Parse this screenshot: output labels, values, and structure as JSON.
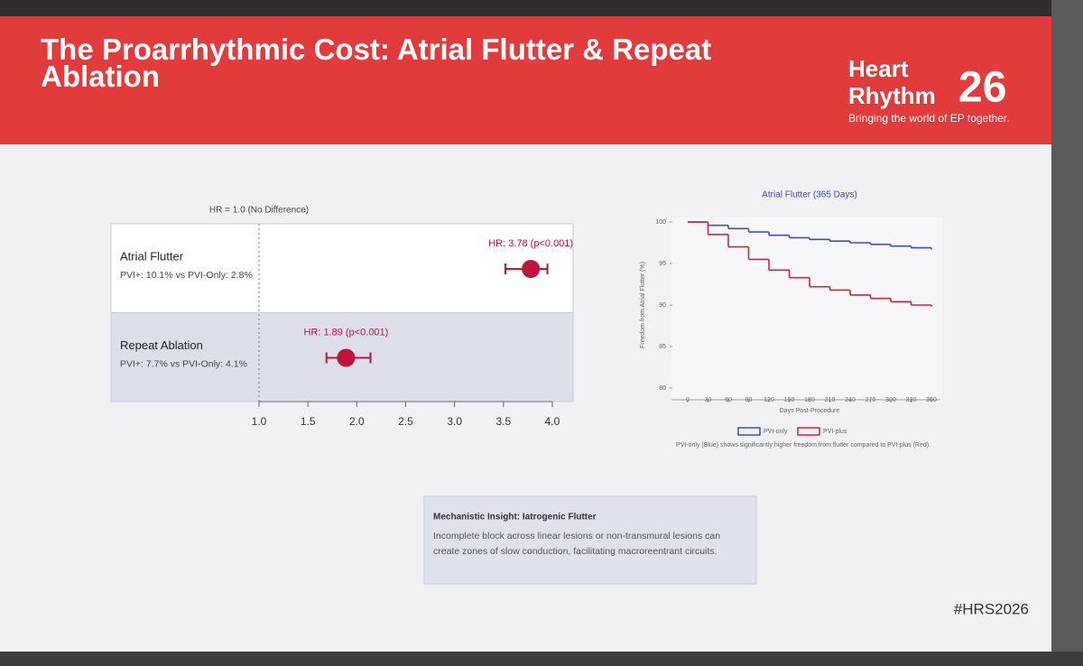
{
  "slide": {
    "title": "The Proarrhythmic Cost: Atrial Flutter & Repeat Ablation",
    "logo": {
      "line1": "Heart",
      "line2": "Rhythm",
      "number": "26",
      "tagline": "Bringing the world of EP together."
    },
    "insight": {
      "title": "Mechanistic Insight: Iatrogenic Flutter",
      "body": "Incomplete block across linear lesions or non-transmural lesions can create zones of slow conduction, facilitating macroreentrant circuits."
    },
    "hashtag": "#HRS2026"
  },
  "chart_data": [
    {
      "type": "forest",
      "annotation": "HR = 1.0 (No Difference)",
      "categories": [
        "Atrial Flutter",
        "Repeat Ablation"
      ],
      "subtitles": [
        "PVI+: 10.1% vs PVI-Only: 2.8%",
        "PVI+: 7.7% vs PVI-Only: 4.1%"
      ],
      "values": [
        3.78,
        1.89
      ],
      "value_labels": [
        "HR: 3.78 (p<0.001)",
        "HR: 1.89 (p<0.001)"
      ],
      "ci_low": [
        3.52,
        1.69
      ],
      "ci_high": [
        3.95,
        2.14
      ],
      "color": "#c0143c",
      "xlim": [
        1,
        4
      ],
      "xticks": [
        {
          "value": 1,
          "label": "1.0"
        },
        1.5,
        {
          "value": 2,
          "label": "2.0"
        },
        2.5,
        {
          "value": 3,
          "label": "3.0"
        },
        3.5,
        {
          "value": 4,
          "label": "4.0"
        }
      ]
    },
    {
      "type": "line",
      "step": true,
      "title": "Atrial Flutter (365 Days)",
      "xlabel": "Days Post-Procedure",
      "ylabel": "Freedom from Atrial Flutter (%)",
      "x": [
        0,
        30,
        60,
        90,
        120,
        150,
        180,
        210,
        240,
        270,
        300,
        330,
        360
      ],
      "series": [
        {
          "name": "PVI-only",
          "color": "#3a4fc0",
          "values": [
            100,
            99.6,
            99.2,
            98.8,
            98.4,
            98.1,
            97.9,
            97.7,
            97.5,
            97.3,
            97.1,
            96.9,
            96.7
          ]
        },
        {
          "name": "PVI-plus",
          "color": "#c8283c",
          "values": [
            100,
            98.5,
            97.0,
            95.5,
            94.2,
            93.3,
            92.2,
            91.8,
            91.2,
            90.8,
            90.4,
            90.0,
            89.8
          ]
        }
      ],
      "xlim": [
        0,
        360
      ],
      "ylim": [
        80,
        100
      ],
      "xticks": [
        0,
        30,
        60,
        90,
        120,
        150,
        180,
        210,
        240,
        270,
        300,
        330,
        360
      ],
      "yticks": [
        80,
        85,
        90,
        95,
        100
      ],
      "caption": "PVI-only (Blue) shows significantly higher freedom from flutter compared to PVI-plus (Red)."
    }
  ]
}
